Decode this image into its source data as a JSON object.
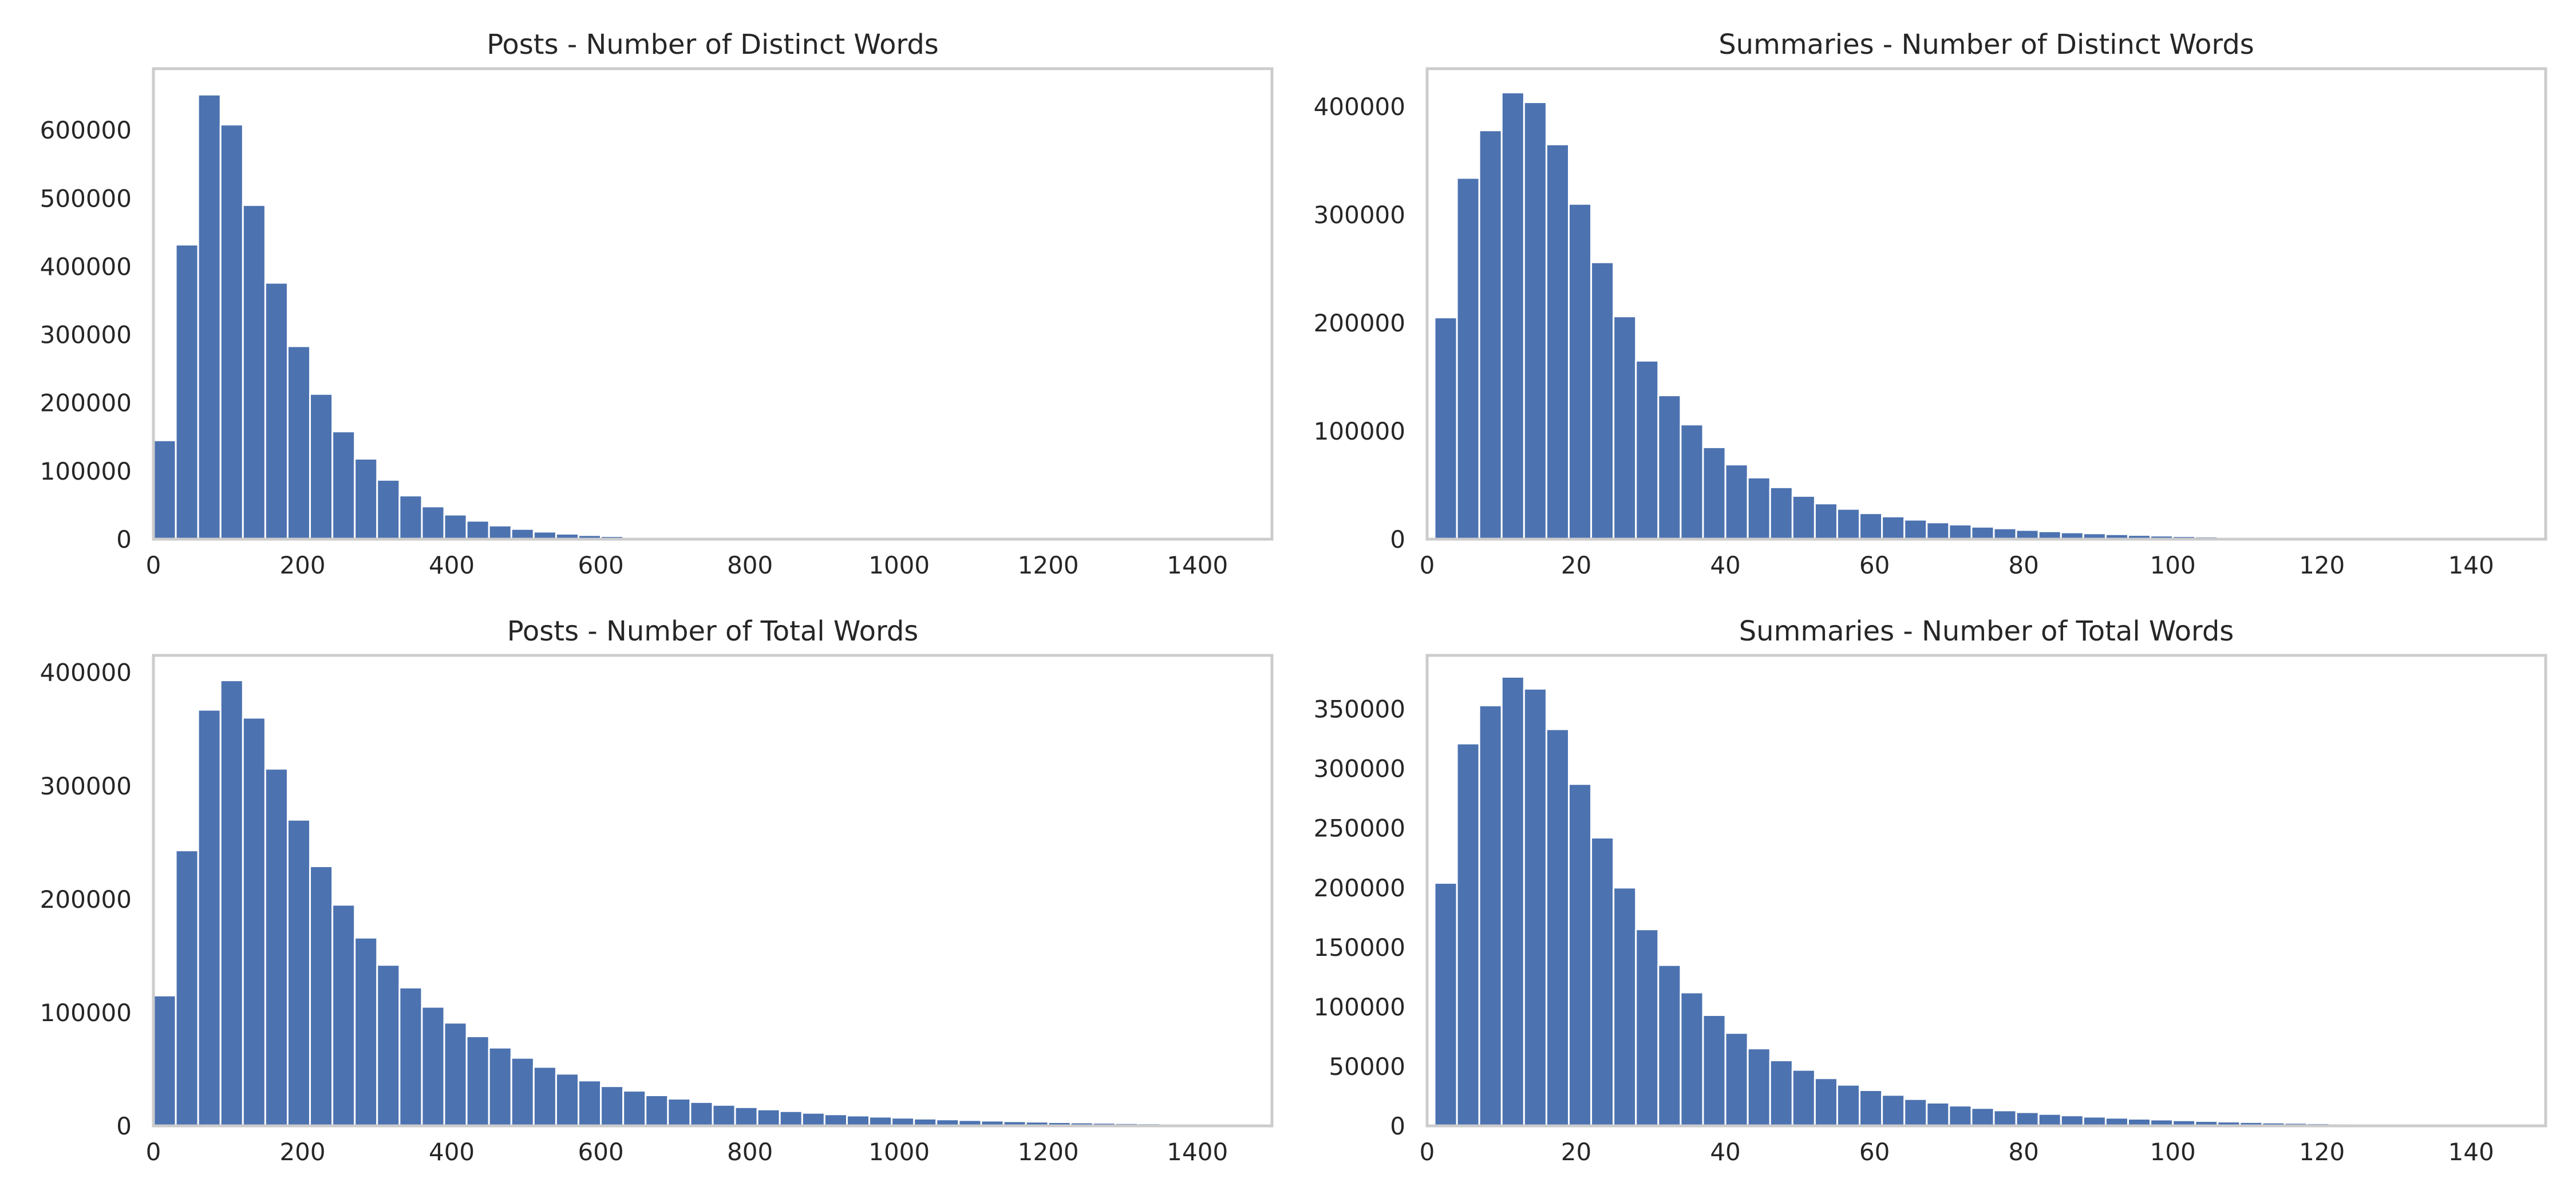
{
  "colors": {
    "bar": "#4c72b0",
    "frame": "#cccccc",
    "text": "#262626",
    "background": "#ffffff"
  },
  "chart_data": [
    {
      "type": "bar",
      "title": "Posts - Number of Distinct Words",
      "xlim": [
        0,
        1500
      ],
      "ylim": [
        0,
        690000
      ],
      "xticks": [
        0,
        200,
        400,
        600,
        800,
        1000,
        1200,
        1400
      ],
      "yticks": [
        0,
        100000,
        200000,
        300000,
        400000,
        500000,
        600000
      ],
      "bin_width": 30,
      "values": [
        145000,
        432000,
        652000,
        608000,
        490000,
        376000,
        283000,
        213000,
        158000,
        118000,
        87000,
        64000,
        48000,
        36000,
        27000,
        20000,
        15000,
        11000,
        8000,
        6000,
        4500,
        3200,
        2300,
        1600,
        1100,
        800,
        600,
        450,
        350,
        280,
        220,
        180,
        150,
        120,
        100,
        80,
        70,
        60,
        50,
        45,
        40,
        35,
        30,
        25,
        20,
        18,
        15,
        12,
        10,
        8
      ],
      "grid": false
    },
    {
      "type": "bar",
      "title": "Summaries - Number of Distinct Words",
      "xlim": [
        0,
        150
      ],
      "ylim": [
        0,
        435000
      ],
      "xticks": [
        0,
        20,
        40,
        60,
        80,
        100,
        120,
        140
      ],
      "yticks": [
        0,
        100000,
        200000,
        300000,
        400000
      ],
      "bin_start": 1,
      "bin_width": 3,
      "values": [
        205000,
        334000,
        378000,
        413000,
        404000,
        365000,
        310000,
        256000,
        206000,
        165000,
        133000,
        106000,
        85000,
        69000,
        57000,
        48000,
        40000,
        33000,
        28000,
        24000,
        21000,
        18000,
        15500,
        13500,
        11500,
        10000,
        8500,
        7300,
        6300,
        5400,
        4600,
        3900,
        3300,
        2800,
        2400,
        2000,
        1700,
        1400,
        1200,
        1000,
        850,
        700,
        600,
        500,
        420,
        350,
        300,
        250,
        210,
        180
      ],
      "grid": false
    },
    {
      "type": "bar",
      "title": "Posts - Number of Total Words",
      "xlim": [
        0,
        1500
      ],
      "ylim": [
        0,
        415000
      ],
      "xticks": [
        0,
        200,
        400,
        600,
        800,
        1000,
        1200,
        1400
      ],
      "yticks": [
        0,
        100000,
        200000,
        300000,
        400000
      ],
      "bin_width": 30,
      "values": [
        115000,
        243000,
        367000,
        393000,
        360000,
        315000,
        270000,
        229000,
        195000,
        166000,
        142000,
        122000,
        105000,
        91000,
        79000,
        69000,
        60000,
        52000,
        46000,
        40000,
        35000,
        31000,
        27000,
        24000,
        21000,
        18500,
        16500,
        14500,
        13000,
        11500,
        10200,
        9100,
        8100,
        7200,
        6400,
        5700,
        5100,
        4600,
        4100,
        3700,
        3300,
        3000,
        2700,
        2400,
        2200,
        2000,
        1800,
        1600,
        1450,
        1300
      ],
      "grid": false
    },
    {
      "type": "bar",
      "title": "Summaries - Number of Total Words",
      "xlim": [
        0,
        150
      ],
      "ylim": [
        0,
        395000
      ],
      "xticks": [
        0,
        20,
        40,
        60,
        80,
        100,
        120,
        140
      ],
      "yticks": [
        0,
        50000,
        100000,
        150000,
        200000,
        250000,
        300000,
        350000
      ],
      "bin_start": 1,
      "bin_width": 3,
      "values": [
        204000,
        321000,
        353000,
        377000,
        367000,
        333000,
        287000,
        242000,
        200000,
        165000,
        135000,
        112000,
        93000,
        78000,
        65000,
        55000,
        47000,
        40000,
        34500,
        30000,
        26000,
        22500,
        19500,
        17000,
        15000,
        13000,
        11500,
        10000,
        8800,
        7700,
        6800,
        6000,
        5300,
        4700,
        4100,
        3600,
        3200,
        2800,
        2500,
        2200,
        1950,
        1700,
        1500,
        1300,
        1150,
        1000,
        880,
        770,
        680,
        600
      ],
      "grid": false
    }
  ]
}
